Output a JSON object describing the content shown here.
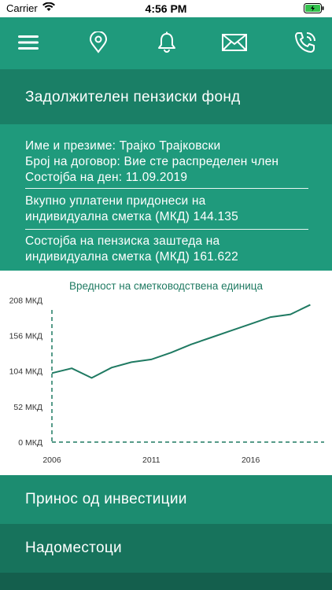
{
  "status_bar": {
    "carrier": "Carrier",
    "time": "4:56 PM"
  },
  "navbar": {
    "icons": [
      "menu-icon",
      "location-pin-icon",
      "bell-icon",
      "envelope-icon",
      "phone-icon"
    ]
  },
  "section": {
    "title": "Задолжителен пензиски фонд"
  },
  "info": {
    "name_line": "Име и презиме: Трајко Трајковски",
    "contract_line": "Број на договор:  Вие сте распределен член",
    "date_line": "Состојба на ден: 11.09.2019",
    "contrib_line1": "Вкупно уплатени придонеси на",
    "contrib_line2": "индивидуална сметка (МКД) 144.135",
    "savings_line1": "Состојба на пензиска заштеда на",
    "savings_line2": "индивидуална сметка (МКД) 161.622"
  },
  "chart_data": {
    "type": "line",
    "title": "Вредност на сметководствена единица",
    "xlabel": "",
    "ylabel": "",
    "x_ticks": [
      "2006",
      "2011",
      "2016"
    ],
    "y_ticks": [
      "0 МКД",
      "52 МКД",
      "104 МКД",
      "156 МКД",
      "208 МКД"
    ],
    "y_tick_values": [
      0,
      52,
      104,
      156,
      208
    ],
    "ylim": [
      0,
      228
    ],
    "xlim": [
      2006,
      2019.3
    ],
    "grid": false,
    "series": [
      {
        "x": [
          2006,
          2007,
          2008,
          2009,
          2010,
          2011,
          2012,
          2013,
          2014,
          2015,
          2016,
          2017,
          2018,
          2019
        ],
        "values": [
          101,
          108,
          94,
          109,
          117,
          121,
          131,
          143,
          153,
          163,
          173,
          183,
          187,
          201
        ]
      }
    ],
    "colors": {
      "line": "#1f7a62",
      "axis": "#1f7a62"
    }
  },
  "menu": {
    "items": [
      {
        "label": "Принос од инвестиции"
      },
      {
        "label": "Надоместоци"
      }
    ]
  },
  "colors": {
    "primary": "#1f9a7c",
    "primary_dark": "#1a7f66",
    "menu1": "#1c8c70",
    "menu2": "#17735c",
    "menu3": "#145f4d"
  }
}
